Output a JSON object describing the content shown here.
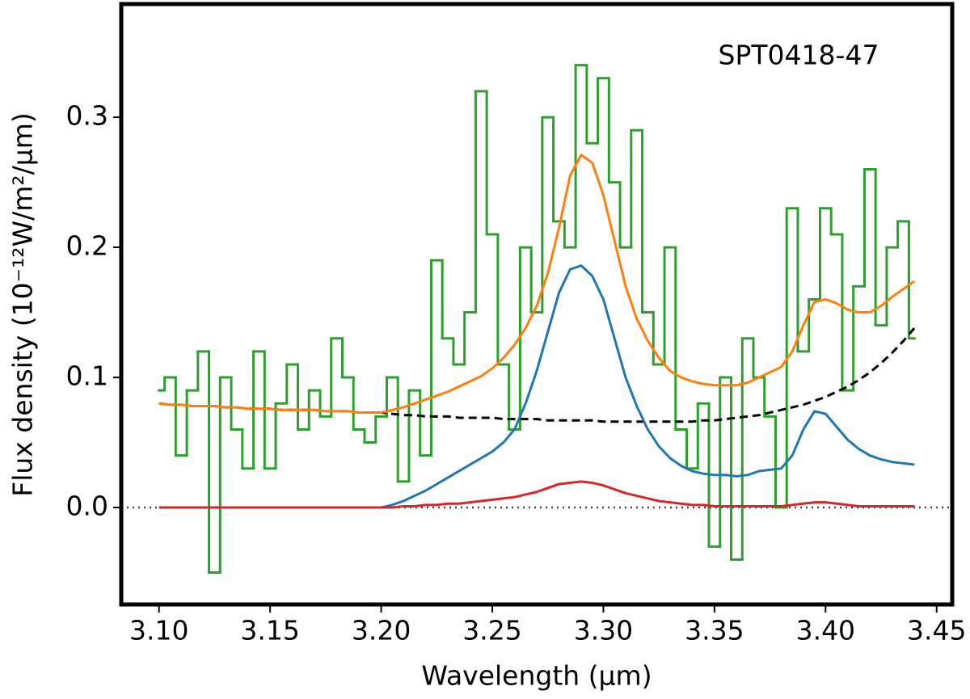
{
  "chart_data": {
    "type": "line",
    "annotation": "SPT0418-47",
    "xlabel": "Wavelength (μm)",
    "ylabel": "Flux density (10⁻¹²W/m²/μm)",
    "xlim": [
      3.083,
      3.457
    ],
    "ylim": [
      -0.0745,
      0.387
    ],
    "xticks": [
      {
        "value": 3.1,
        "label": "3.10"
      },
      3.15,
      {
        "value": 3.2,
        "label": "3.20"
      },
      3.25,
      {
        "value": 3.3,
        "label": "3.30"
      },
      3.35,
      {
        "value": 3.4,
        "label": "3.40"
      },
      3.45
    ],
    "yticks": [
      {
        "value": 0,
        "label": "0.0"
      },
      0.1,
      0.2,
      0.3
    ],
    "hline": 0,
    "x": [
      3.1,
      3.105,
      3.11,
      3.115,
      3.12,
      3.125,
      3.13,
      3.135,
      3.14,
      3.145,
      3.15,
      3.155,
      3.16,
      3.165,
      3.17,
      3.175,
      3.18,
      3.185,
      3.19,
      3.195,
      3.2,
      3.205,
      3.21,
      3.215,
      3.22,
      3.225,
      3.23,
      3.235,
      3.24,
      3.245,
      3.25,
      3.255,
      3.26,
      3.265,
      3.27,
      3.275,
      3.28,
      3.285,
      3.29,
      3.295,
      3.3,
      3.305,
      3.31,
      3.315,
      3.32,
      3.325,
      3.33,
      3.335,
      3.34,
      3.345,
      3.35,
      3.355,
      3.36,
      3.365,
      3.37,
      3.375,
      3.38,
      3.385,
      3.39,
      3.395,
      3.4,
      3.405,
      3.41,
      3.415,
      3.42,
      3.425,
      3.43,
      3.435,
      3.44
    ],
    "series": [
      {
        "color": "#2ca02c",
        "drawstyle": "steps-mid",
        "values": [
          0.09,
          0.1,
          0.04,
          0.09,
          0.12,
          -0.05,
          0.1,
          0.06,
          0.03,
          0.12,
          0.03,
          0.08,
          0.11,
          0.06,
          0.09,
          0.07,
          0.13,
          0.1,
          0.06,
          0.05,
          0.07,
          0.1,
          0.02,
          0.09,
          0.04,
          0.19,
          0.13,
          0.11,
          0.15,
          0.32,
          0.21,
          0.11,
          0.06,
          0.2,
          0.15,
          0.3,
          0.22,
          0.2,
          0.34,
          0.28,
          0.33,
          0.25,
          0.2,
          0.29,
          0.15,
          0.11,
          0.2,
          0.06,
          0.03,
          0.08,
          -0.03,
          0.1,
          -0.04,
          0.13,
          0.1,
          0.07,
          0.0,
          0.23,
          0.12,
          0.16,
          0.23,
          0.21,
          0.09,
          0.17,
          0.26,
          0.14,
          0.2,
          0.22,
          0.13
        ]
      },
      {
        "color": "#000000",
        "linestyle": "dashed",
        "values": [
          0.08,
          0.079,
          0.079,
          0.078,
          0.078,
          0.078,
          0.077,
          0.077,
          0.076,
          0.076,
          0.076,
          0.075,
          0.075,
          0.075,
          0.075,
          0.074,
          0.074,
          0.074,
          0.073,
          0.073,
          0.073,
          0.072,
          0.071,
          0.071,
          0.07,
          0.07,
          0.07,
          0.069,
          0.069,
          0.069,
          0.069,
          0.068,
          0.068,
          0.068,
          0.068,
          0.067,
          0.067,
          0.067,
          0.067,
          0.067,
          0.066,
          0.066,
          0.066,
          0.066,
          0.066,
          0.066,
          0.066,
          0.066,
          0.066,
          0.067,
          0.067,
          0.068,
          0.069,
          0.07,
          0.071,
          0.073,
          0.075,
          0.077,
          0.079,
          0.082,
          0.085,
          0.089,
          0.093,
          0.098,
          0.104,
          0.111,
          0.119,
          0.128,
          0.138
        ]
      },
      {
        "color": "#1f77b4",
        "values": [
          0,
          0,
          0,
          0,
          0,
          0,
          0,
          0,
          0,
          0,
          0,
          0,
          0,
          0,
          0,
          0,
          0,
          0,
          0,
          0,
          0,
          0.002,
          0.005,
          0.009,
          0.013,
          0.018,
          0.023,
          0.028,
          0.033,
          0.038,
          0.043,
          0.05,
          0.06,
          0.08,
          0.105,
          0.135,
          0.165,
          0.183,
          0.186,
          0.178,
          0.16,
          0.13,
          0.1,
          0.078,
          0.06,
          0.047,
          0.038,
          0.032,
          0.028,
          0.026,
          0.025,
          0.025,
          0.024,
          0.025,
          0.028,
          0.029,
          0.03,
          0.04,
          0.06,
          0.074,
          0.072,
          0.062,
          0.052,
          0.045,
          0.04,
          0.037,
          0.035,
          0.034,
          0.033
        ]
      },
      {
        "color": "#d62728",
        "values": [
          0,
          0,
          0,
          0,
          0,
          0,
          0,
          0,
          0,
          0,
          0,
          0,
          0,
          0,
          0,
          0,
          0,
          0,
          0,
          0,
          0,
          0,
          0.001,
          0.001,
          0.002,
          0.002,
          0.003,
          0.003,
          0.004,
          0.005,
          0.006,
          0.007,
          0.008,
          0.01,
          0.012,
          0.015,
          0.018,
          0.019,
          0.02,
          0.019,
          0.017,
          0.014,
          0.011,
          0.009,
          0.007,
          0.005,
          0.004,
          0.003,
          0.002,
          0.002,
          0.001,
          0.001,
          0.001,
          0.001,
          0.001,
          0.001,
          0.001,
          0.002,
          0.003,
          0.004,
          0.004,
          0.003,
          0.002,
          0.001,
          0.001,
          0.001,
          0.001,
          0.001,
          0.001
        ]
      },
      {
        "color": "#ff7f0e",
        "values": [
          0.08,
          0.079,
          0.079,
          0.078,
          0.078,
          0.078,
          0.077,
          0.077,
          0.076,
          0.076,
          0.076,
          0.075,
          0.075,
          0.075,
          0.075,
          0.074,
          0.074,
          0.074,
          0.073,
          0.073,
          0.073,
          0.075,
          0.077,
          0.08,
          0.083,
          0.086,
          0.089,
          0.093,
          0.097,
          0.101,
          0.107,
          0.115,
          0.125,
          0.138,
          0.155,
          0.18,
          0.215,
          0.255,
          0.271,
          0.265,
          0.24,
          0.205,
          0.17,
          0.145,
          0.128,
          0.115,
          0.105,
          0.1,
          0.097,
          0.095,
          0.094,
          0.094,
          0.094,
          0.096,
          0.1,
          0.104,
          0.108,
          0.12,
          0.14,
          0.158,
          0.16,
          0.157,
          0.152,
          0.15,
          0.15,
          0.155,
          0.162,
          0.168,
          0.174
        ]
      }
    ]
  }
}
